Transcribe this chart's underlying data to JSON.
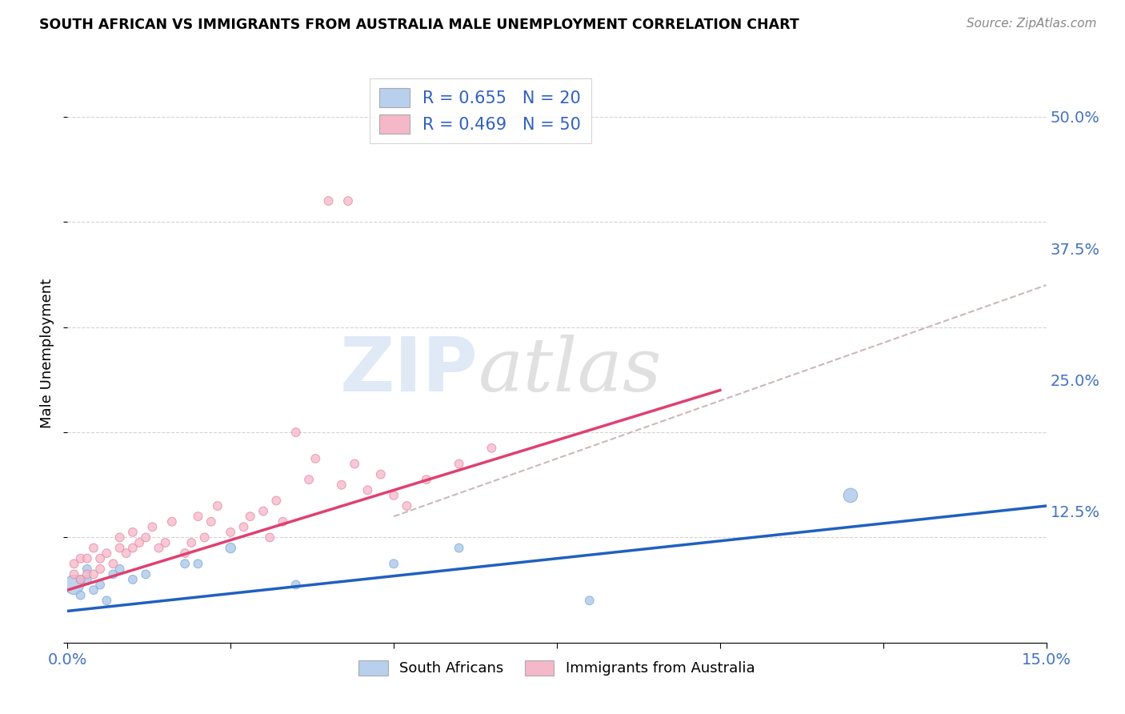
{
  "title": "SOUTH AFRICAN VS IMMIGRANTS FROM AUSTRALIA MALE UNEMPLOYMENT CORRELATION CHART",
  "source": "Source: ZipAtlas.com",
  "ylabel": "Male Unemployment",
  "xlim": [
    0.0,
    0.15
  ],
  "ylim": [
    0.0,
    0.55
  ],
  "ytick_labels_right": [
    "50.0%",
    "37.5%",
    "25.0%",
    "12.5%"
  ],
  "ytick_positions_right": [
    0.5,
    0.375,
    0.25,
    0.125
  ],
  "grid_color": "#d0d0d0",
  "background_color": "#ffffff",
  "legend_label1": "R = 0.655   N = 20",
  "legend_label2": "R = 0.469   N = 50",
  "legend_color1": "#b8d0ed",
  "legend_color2": "#f5b8c8",
  "watermark_zip": "ZIP",
  "watermark_atlas": "atlas",
  "blue_scatter_x": [
    0.001,
    0.002,
    0.002,
    0.003,
    0.003,
    0.004,
    0.005,
    0.006,
    0.007,
    0.008,
    0.01,
    0.012,
    0.018,
    0.02,
    0.025,
    0.035,
    0.05,
    0.06,
    0.08,
    0.12
  ],
  "blue_scatter_y": [
    0.055,
    0.045,
    0.06,
    0.06,
    0.07,
    0.05,
    0.055,
    0.04,
    0.065,
    0.07,
    0.06,
    0.065,
    0.075,
    0.075,
    0.09,
    0.055,
    0.075,
    0.09,
    0.04,
    0.14
  ],
  "blue_scatter_size": [
    300,
    60,
    60,
    60,
    60,
    60,
    60,
    60,
    60,
    60,
    60,
    60,
    60,
    60,
    80,
    60,
    60,
    60,
    60,
    160
  ],
  "pink_scatter_x": [
    0.001,
    0.001,
    0.002,
    0.002,
    0.003,
    0.003,
    0.004,
    0.004,
    0.005,
    0.005,
    0.006,
    0.007,
    0.008,
    0.008,
    0.009,
    0.01,
    0.01,
    0.011,
    0.012,
    0.013,
    0.014,
    0.015,
    0.016,
    0.018,
    0.019,
    0.02,
    0.021,
    0.022,
    0.023,
    0.025,
    0.027,
    0.028,
    0.03,
    0.031,
    0.032,
    0.033,
    0.035,
    0.037,
    0.038,
    0.04,
    0.042,
    0.043,
    0.044,
    0.046,
    0.048,
    0.05,
    0.052,
    0.055,
    0.06,
    0.065
  ],
  "pink_scatter_y": [
    0.065,
    0.075,
    0.06,
    0.08,
    0.065,
    0.08,
    0.065,
    0.09,
    0.07,
    0.08,
    0.085,
    0.075,
    0.09,
    0.1,
    0.085,
    0.09,
    0.105,
    0.095,
    0.1,
    0.11,
    0.09,
    0.095,
    0.115,
    0.085,
    0.095,
    0.12,
    0.1,
    0.115,
    0.13,
    0.105,
    0.11,
    0.12,
    0.125,
    0.1,
    0.135,
    0.115,
    0.2,
    0.155,
    0.175,
    0.42,
    0.15,
    0.42,
    0.17,
    0.145,
    0.16,
    0.14,
    0.13,
    0.155,
    0.17,
    0.185
  ],
  "pink_scatter_size": [
    60,
    60,
    60,
    60,
    60,
    60,
    60,
    60,
    60,
    60,
    60,
    60,
    60,
    60,
    60,
    60,
    60,
    60,
    60,
    60,
    60,
    60,
    60,
    60,
    60,
    60,
    60,
    60,
    60,
    60,
    60,
    60,
    60,
    60,
    60,
    60,
    60,
    60,
    60,
    60,
    60,
    60,
    60,
    60,
    60,
    60,
    60,
    60,
    60,
    60
  ],
  "blue_fill": "#aac4e8",
  "blue_edge": "#7aadd4",
  "pink_fill": "#f5b8c8",
  "pink_edge": "#e888a8",
  "blue_line_color": "#2060c0",
  "pink_line_color": "#e04070",
  "trendline_dashed_color": "#c8b0b0",
  "bottom_legend_labels": [
    "South Africans",
    "Immigrants from Australia"
  ],
  "blue_trend_x0": 0.0,
  "blue_trend_y0": 0.03,
  "blue_trend_x1": 0.15,
  "blue_trend_y1": 0.13,
  "pink_trend_x0": 0.0,
  "pink_trend_y0": 0.05,
  "pink_trend_x1": 0.1,
  "pink_trend_y1": 0.24,
  "dashed_trend_x0": 0.05,
  "dashed_trend_y0": 0.12,
  "dashed_trend_x1": 0.15,
  "dashed_trend_y1": 0.34
}
